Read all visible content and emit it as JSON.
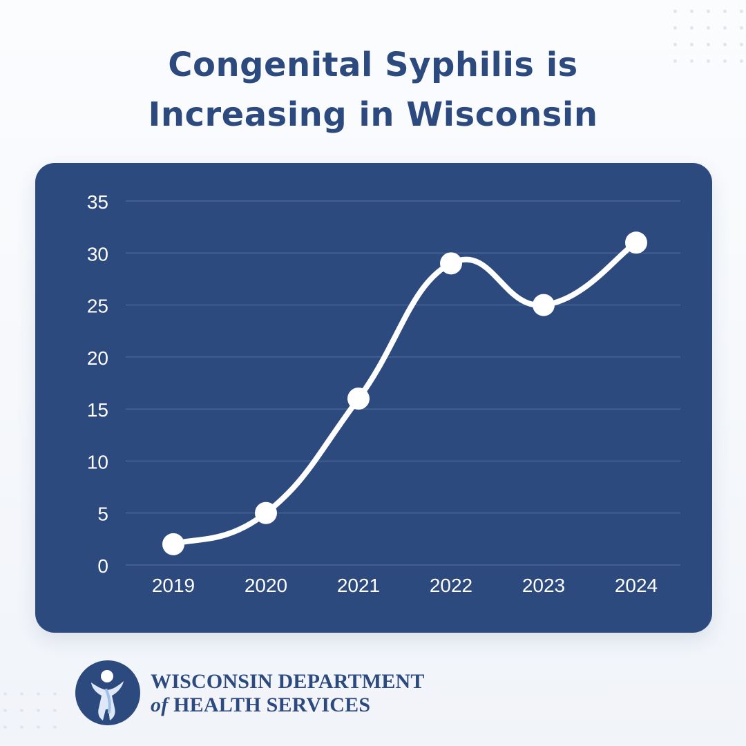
{
  "page": {
    "title_line1": "Congenital Syphilis is",
    "title_line2": "Increasing in Wisconsin"
  },
  "branding": {
    "line1": "WISCONSIN DEPARTMENT",
    "line2_prefix": "of",
    "line2_suffix": "HEALTH SERVICES"
  },
  "colors": {
    "background_top": "#fbfcfe",
    "background_bottom": "#f1f4f9",
    "accent": "#2d4a7f",
    "line": "#ffffff",
    "grid": "#5a73a3",
    "dots": "#e1e6ee"
  },
  "chart_data": {
    "type": "line",
    "x": [
      "2019",
      "2020",
      "2021",
      "2022",
      "2023",
      "2024"
    ],
    "values": [
      2,
      5,
      16,
      29,
      25,
      31
    ],
    "y_ticks": [
      35,
      30,
      25,
      20,
      15,
      10,
      5,
      0
    ],
    "ylim": [
      0,
      35
    ],
    "grid": true,
    "legend": "none",
    "smooth": true
  }
}
